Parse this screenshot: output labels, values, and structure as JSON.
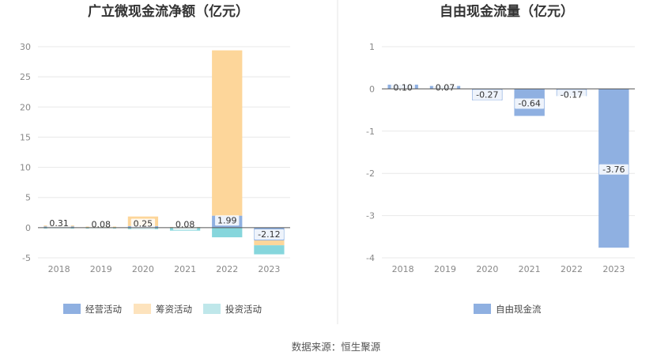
{
  "source": "数据来源：恒生聚源",
  "colors": {
    "operating": "#8fb0e1",
    "financing": "#fdd69a",
    "investing": "#86d6dc",
    "investing_legend": "#bfe7ea",
    "financing_legend": "#fde3bd",
    "fcf": "#8fb0e1"
  },
  "chart_data": [
    {
      "type": "bar",
      "stacked": true,
      "title": "广立微现金流净额（亿元）",
      "categories": [
        "2018",
        "2019",
        "2020",
        "2021",
        "2022",
        "2023"
      ],
      "ylim": [
        -5,
        30
      ],
      "yticks": [
        -5,
        0,
        5,
        10,
        15,
        20,
        25,
        30
      ],
      "grid": true,
      "legend": "bottom",
      "series": [
        {
          "name": "经营活动",
          "key": "operating",
          "values": [
            0.31,
            0.08,
            0.25,
            0.08,
            1.99,
            -2.12
          ]
        },
        {
          "name": "筹资活动",
          "key": "financing",
          "values": [
            0.05,
            0.1,
            1.6,
            0.02,
            27.4,
            -0.8
          ]
        },
        {
          "name": "投资活动",
          "key": "investing",
          "values": [
            -0.05,
            -0.1,
            -0.25,
            -0.5,
            -1.6,
            -1.5
          ]
        }
      ],
      "data_labels": [
        "0.31",
        "0.08",
        "0.25",
        "0.08",
        "1.99",
        "-2.12"
      ]
    },
    {
      "type": "bar",
      "title": "自由现金流量（亿元）",
      "categories": [
        "2018",
        "2019",
        "2020",
        "2021",
        "2022",
        "2023"
      ],
      "ylim": [
        -4,
        1
      ],
      "yticks": [
        -4,
        -3,
        -2,
        -1,
        0,
        1
      ],
      "grid": true,
      "legend": "bottom",
      "series": [
        {
          "name": "自由现金流",
          "key": "fcf",
          "values": [
            0.1,
            0.07,
            -0.27,
            -0.64,
            -0.17,
            -3.76
          ]
        }
      ],
      "data_labels": [
        "0.10",
        "0.07",
        "-0.27",
        "-0.64",
        "-0.17",
        "-3.76"
      ]
    }
  ]
}
